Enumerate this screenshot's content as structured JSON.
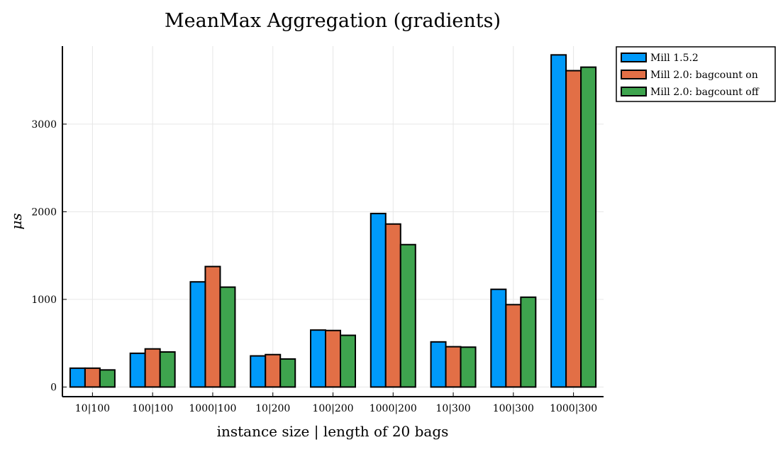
{
  "chart_data": {
    "type": "bar",
    "title": "MeanMax Aggregation (gradients)",
    "xlabel": "instance size | length of 20 bags",
    "ylabel": "μs",
    "ylim": [
      -110,
      3890
    ],
    "yticks": [
      0,
      1000,
      2000,
      3000
    ],
    "ytick_labels": [
      "0",
      "1000",
      "2000",
      "3000"
    ],
    "grid": true,
    "legend_position": "outside-top-right",
    "categories": [
      "10|100",
      "100|100",
      "1000|100",
      "10|200",
      "100|200",
      "1000|200",
      "10|300",
      "100|300",
      "1000|300"
    ],
    "series": [
      {
        "name": "Mill 1.5.2",
        "color": "#009AFA",
        "values": [
          215,
          385,
          1200,
          355,
          650,
          1980,
          515,
          1115,
          3790
        ]
      },
      {
        "name": "Mill 2.0: bagcount on",
        "color": "#E26F46",
        "values": [
          215,
          435,
          1375,
          370,
          645,
          1860,
          460,
          940,
          3610
        ]
      },
      {
        "name": "Mill 2.0: bagcount off",
        "color": "#3EA44E",
        "values": [
          195,
          400,
          1140,
          320,
          590,
          1625,
          455,
          1025,
          3650
        ]
      }
    ]
  }
}
